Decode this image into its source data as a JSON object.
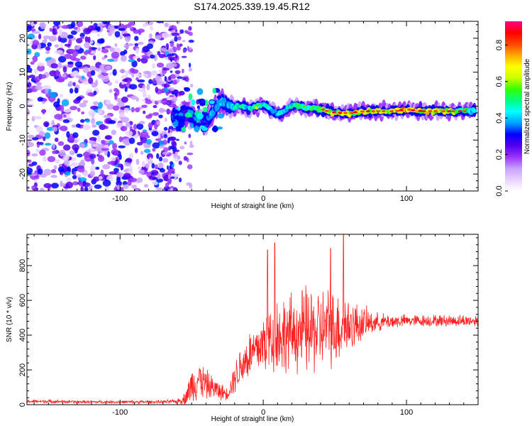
{
  "chart_data": [
    {
      "type": "heatmap",
      "title": "S174.2025.339.19.45.R12",
      "xlabel": "Height of straight line (km)",
      "ylabel": "Frequency (Hz)",
      "xlim": [
        -165,
        150
      ],
      "ylim": [
        -25,
        25
      ],
      "xticks": [
        -100,
        0,
        100
      ],
      "yticks": [
        -20,
        -10,
        0,
        10,
        20
      ],
      "colorbar": {
        "label": "Normalized spectral amplitude",
        "range": [
          0,
          0.93
        ],
        "ticks": [
          0.0,
          0.2,
          0.4,
          0.6,
          0.8
        ],
        "colors": [
          "#ffffff",
          "#e9d2ff",
          "#c9a0ff",
          "#9933ff",
          "#5500ee",
          "#0000ff",
          "#00a0ff",
          "#00ffff",
          "#00ff80",
          "#33ff00",
          "#ccff00",
          "#ffff00",
          "#ffaa00",
          "#ff4400",
          "#ff0000",
          "#ff0088"
        ]
      },
      "noise_region_km": [
        -165,
        -65
      ],
      "ridge": {
        "x": [
          -62,
          -58,
          -55,
          -50,
          -45,
          -40,
          -35,
          -30,
          -25,
          -20,
          -15,
          -10,
          -5,
          0,
          5,
          10,
          15,
          20,
          30,
          40,
          50,
          60,
          70,
          80,
          90,
          100,
          110,
          120,
          130,
          140,
          148
        ],
        "freq": [
          -3,
          -3.5,
          -2,
          -2.5,
          -4,
          -5,
          -1.5,
          1,
          0.5,
          -0.5,
          0,
          -1,
          0,
          0.5,
          -1,
          -2.5,
          -1.5,
          0.5,
          -0.5,
          -1,
          -2,
          -2,
          -1.5,
          -1.5,
          -1.5,
          -1,
          -1.5,
          -1.5,
          -1.5,
          -1.5,
          -1.5
        ],
        "amplitude": [
          0.35,
          0.4,
          0.3,
          0.45,
          0.35,
          0.4,
          0.4,
          0.45,
          0.4,
          0.5,
          0.55,
          0.45,
          0.6,
          0.55,
          0.45,
          0.4,
          0.5,
          0.5,
          0.55,
          0.6,
          0.7,
          0.75,
          0.7,
          0.65,
          0.7,
          0.8,
          0.7,
          0.8,
          0.7,
          0.55,
          0.45
        ]
      }
    },
    {
      "type": "line",
      "xlabel": "Height of straight line (km)",
      "ylabel": "SNR (10 * v/v)",
      "xlim": [
        -165,
        150
      ],
      "ylim": [
        0,
        980
      ],
      "xticks": [
        -100,
        0,
        100
      ],
      "yticks": [
        0,
        200,
        400,
        600,
        800
      ],
      "series": [
        {
          "name": "SNR",
          "color": "#ff2020",
          "x": [
            -165,
            -150,
            -130,
            -110,
            -90,
            -70,
            -60,
            -55,
            -50,
            -45,
            -40,
            -35,
            -30,
            -25,
            -20,
            -15,
            -10,
            -5,
            0,
            5,
            8,
            10,
            15,
            20,
            25,
            30,
            35,
            40,
            45,
            50,
            55,
            60,
            65,
            70,
            80,
            90,
            100,
            110,
            120,
            130,
            140,
            150
          ],
          "base": [
            18,
            18,
            15,
            15,
            15,
            15,
            18,
            30,
            100,
            140,
            110,
            90,
            70,
            60,
            150,
            220,
            270,
            300,
            340,
            360,
            380,
            380,
            380,
            390,
            400,
            400,
            400,
            410,
            420,
            420,
            430,
            440,
            450,
            460,
            470,
            475,
            480,
            480,
            480,
            480,
            480,
            480
          ],
          "amplitude": [
            12,
            12,
            10,
            10,
            10,
            12,
            15,
            40,
            120,
            140,
            100,
            80,
            60,
            40,
            110,
            150,
            170,
            180,
            220,
            280,
            300,
            280,
            260,
            260,
            280,
            300,
            300,
            280,
            270,
            250,
            240,
            200,
            150,
            110,
            60,
            50,
            40,
            40,
            40,
            40,
            40,
            40
          ],
          "peaks": [
            {
              "x": 8,
              "y": 930
            },
            {
              "x": 56,
              "y": 980
            },
            {
              "x": 3,
              "y": 890
            },
            {
              "x": 47,
              "y": 900
            }
          ]
        }
      ]
    }
  ]
}
